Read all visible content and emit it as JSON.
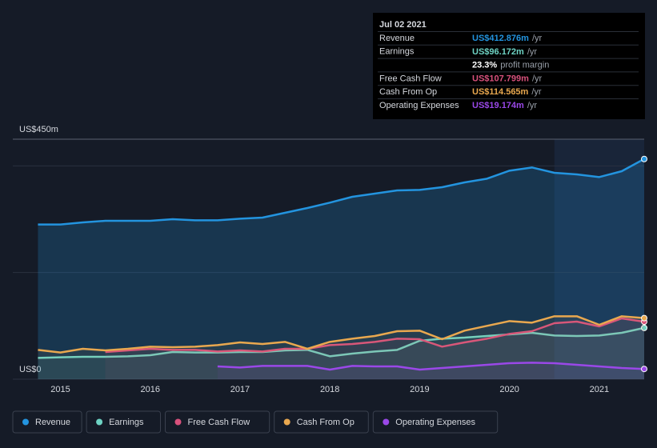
{
  "chart_data": {
    "type": "line",
    "x": [
      2014.75,
      2015,
      2015.25,
      2015.5,
      2015.75,
      2016,
      2016.25,
      2016.5,
      2016.75,
      2017,
      2017.25,
      2017.5,
      2017.75,
      2018,
      2018.25,
      2018.5,
      2018.75,
      2019,
      2019.25,
      2019.5,
      2019.75,
      2020,
      2020.25,
      2020.5,
      2020.75,
      2021,
      2021.25,
      2021.5
    ],
    "xlim": [
      2014.47,
      2021.5
    ],
    "xticks": [
      2015,
      2016,
      2017,
      2018,
      2019,
      2020,
      2021
    ],
    "ylim": [
      0,
      450
    ],
    "yticks": [
      {
        "value": 0,
        "label": "US$0"
      },
      {
        "value": 450,
        "label": "US$450m"
      }
    ],
    "grid_lines": [
      200,
      400
    ],
    "highlight_from": 2020.5,
    "series": [
      {
        "name": "Revenue",
        "color": "#2394df",
        "fill": true,
        "values": [
          290,
          290,
          294,
          297,
          297,
          297,
          300,
          298,
          298,
          301,
          303,
          312,
          321,
          331,
          342,
          348,
          354,
          355,
          360,
          369,
          376,
          391,
          397,
          387,
          384,
          379,
          390,
          412.876
        ]
      },
      {
        "name": "Earnings",
        "color": "#6ed3c4",
        "values": [
          40,
          41,
          42,
          42,
          43,
          45,
          51,
          50,
          50,
          51,
          51,
          54,
          55,
          43,
          48,
          52,
          55,
          72,
          76,
          78,
          81,
          84,
          87,
          82,
          81,
          82,
          87,
          96.172
        ]
      },
      {
        "name": "Free Cash Flow",
        "color": "#d8517c",
        "values": [
          null,
          null,
          null,
          51,
          54,
          57,
          55,
          55,
          52,
          54,
          52,
          57,
          57,
          64,
          66,
          70,
          76,
          75,
          61,
          69,
          76,
          85,
          90,
          105,
          108,
          99,
          114,
          107.799
        ]
      },
      {
        "name": "Cash From Op",
        "color": "#e9a84f",
        "values": [
          55,
          50,
          57,
          54,
          57,
          61,
          60,
          61,
          64,
          69,
          66,
          70,
          57,
          70,
          76,
          81,
          90,
          91,
          75,
          91,
          100,
          109,
          106,
          118,
          118,
          102,
          118,
          114.565
        ]
      },
      {
        "name": "Operating Expenses",
        "color": "#9a48e8",
        "values": [
          null,
          null,
          null,
          null,
          null,
          null,
          null,
          null,
          24,
          22,
          25,
          25,
          25,
          18,
          25,
          24,
          24,
          18,
          21,
          24,
          27,
          30,
          31,
          30,
          27,
          24,
          21,
          19.174
        ]
      }
    ],
    "tooltip": {
      "date": "Jul 02 2021",
      "rows": [
        {
          "label": "Revenue",
          "value": "US$412.876m",
          "unit": "/yr",
          "color": "#2394df"
        },
        {
          "label": "Earnings",
          "value": "US$96.172m",
          "unit": "/yr",
          "color": "#6ed3c4"
        },
        {
          "value": "23.3%",
          "unit": "profit margin",
          "color": "#ffffff"
        },
        {
          "label": "Free Cash Flow",
          "value": "US$107.799m",
          "unit": "/yr",
          "color": "#d8517c"
        },
        {
          "label": "Cash From Op",
          "value": "US$114.565m",
          "unit": "/yr",
          "color": "#e9a84f"
        },
        {
          "label": "Operating Expenses",
          "value": "US$19.174m",
          "unit": "/yr",
          "color": "#9a48e8"
        }
      ]
    }
  }
}
